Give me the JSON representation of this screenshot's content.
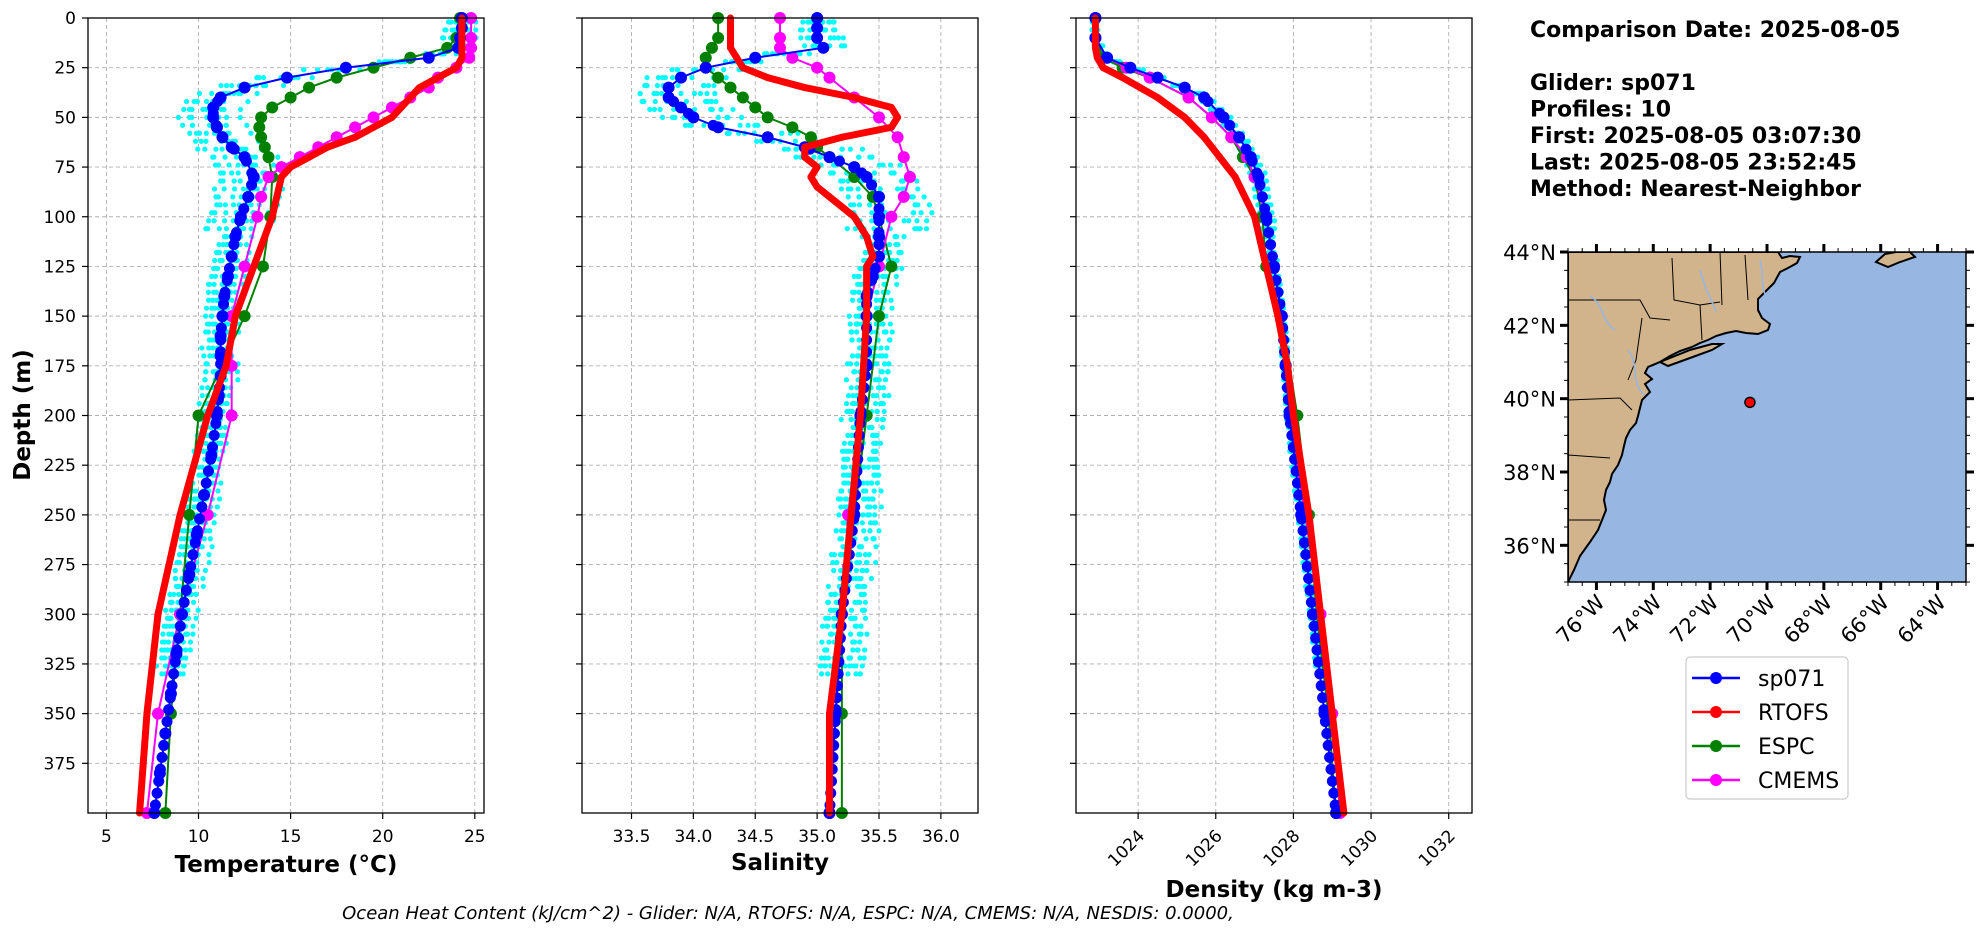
{
  "info_lines": [
    "Comparison Date: 2025-08-05",
    "",
    "Glider: sp071",
    "Profiles: 10",
    "First: 2025-08-05 03:07:30",
    "Last: 2025-08-05 23:52:45",
    "Method: Nearest-Neighbor"
  ],
  "footer": "Ocean Heat Content (kJ/cm^2) - Glider: N/A,  RTOFS: N/A,  ESPC: N/A,  CMEMS: N/A,  NESDIS: 0.0000,",
  "colors": {
    "sp071": "#0000ff",
    "RTOFS": "#ff0000",
    "ESPC": "#008000",
    "CMEMS": "#ff00ff",
    "raw_profiles": "#00ffff",
    "land": "#d2b48c",
    "ocean": "#97b6e1",
    "grid": "#b0b0b0"
  },
  "legend": {
    "placement": "below-map",
    "entries": [
      "sp071",
      "RTOFS",
      "ESPC",
      "CMEMS"
    ]
  },
  "map": {
    "lat_range": [
      35,
      44
    ],
    "lon_range": [
      -77,
      -63
    ],
    "lat_ticks": [
      "44°N",
      "42°N",
      "40°N",
      "38°N",
      "36°N"
    ],
    "lon_ticks": [
      "76°W",
      "74°W",
      "72°W",
      "70°W",
      "68°W",
      "66°W",
      "64°W"
    ],
    "glider_position": [
      -70.6,
      39.9
    ]
  },
  "chart_data": [
    {
      "type": "line",
      "xlabel": "Temperature (°C)",
      "ylabel": "Depth (m)",
      "xlim": [
        4,
        25.5
      ],
      "ylim": [
        400,
        0
      ],
      "xticks": [
        "5",
        "10",
        "15",
        "20",
        "25"
      ],
      "yticks": [
        "0",
        "25",
        "50",
        "75",
        "100",
        "125",
        "150",
        "175",
        "200",
        "225",
        "250",
        "275",
        "300",
        "325",
        "350",
        "375"
      ],
      "grid": true,
      "series": [
        {
          "name": "sp071",
          "depth": [
            0,
            5,
            10,
            15,
            20,
            25,
            30,
            35,
            40,
            45,
            50,
            55,
            60,
            65,
            70,
            80,
            90,
            100,
            110,
            120,
            130,
            140,
            150,
            160,
            170,
            180,
            190,
            200,
            220,
            240,
            260,
            280,
            300,
            320,
            340,
            360,
            380,
            400
          ],
          "values": [
            24.3,
            24.3,
            24.2,
            24.1,
            22.5,
            18.0,
            14.8,
            12.5,
            11.2,
            10.8,
            10.8,
            11.0,
            11.3,
            11.8,
            12.5,
            13.0,
            12.7,
            12.3,
            12.0,
            11.8,
            11.6,
            11.4,
            11.3,
            11.2,
            11.2,
            11.2,
            11.1,
            11.0,
            10.7,
            10.3,
            9.9,
            9.5,
            9.1,
            8.8,
            8.5,
            8.2,
            7.9,
            7.6
          ]
        },
        {
          "name": "RTOFS",
          "depth": [
            0,
            5,
            10,
            15,
            20,
            25,
            30,
            35,
            40,
            45,
            50,
            55,
            60,
            65,
            70,
            75,
            80,
            100,
            125,
            150,
            175,
            200,
            250,
            300,
            350,
            400
          ],
          "values": [
            24.3,
            24.3,
            24.3,
            24.3,
            24.3,
            24.0,
            23.0,
            22.0,
            21.5,
            21.0,
            20.5,
            19.5,
            18.5,
            17.0,
            16.0,
            15.0,
            14.5,
            14.0,
            13.0,
            12.0,
            11.5,
            10.5,
            9.0,
            7.8,
            7.2,
            6.8
          ]
        },
        {
          "name": "ESPC",
          "depth": [
            0,
            10,
            15,
            20,
            25,
            30,
            35,
            40,
            45,
            50,
            55,
            60,
            65,
            70,
            80,
            100,
            125,
            150,
            200,
            250,
            300,
            350,
            400
          ],
          "values": [
            24.2,
            24.0,
            23.5,
            21.5,
            19.5,
            17.5,
            16.0,
            15.0,
            14.0,
            13.4,
            13.3,
            13.4,
            13.6,
            13.8,
            14.0,
            13.9,
            13.5,
            12.5,
            10.0,
            9.5,
            9.0,
            8.5,
            8.2
          ]
        },
        {
          "name": "CMEMS",
          "depth": [
            0,
            10,
            15,
            20,
            25,
            30,
            35,
            40,
            45,
            50,
            55,
            60,
            65,
            70,
            75,
            80,
            90,
            100,
            125,
            150,
            175,
            200,
            250,
            300,
            350,
            400
          ],
          "values": [
            24.8,
            24.8,
            24.8,
            24.7,
            24.0,
            23.0,
            22.5,
            21.5,
            20.5,
            19.5,
            18.5,
            17.5,
            16.5,
            15.5,
            14.5,
            13.8,
            13.4,
            13.2,
            12.5,
            11.8,
            11.8,
            11.8,
            10.5,
            9.0,
            7.8,
            7.2
          ]
        }
      ]
    },
    {
      "type": "line",
      "xlabel": "Salinity",
      "xlim": [
        33.1,
        36.3
      ],
      "ylim": [
        400,
        0
      ],
      "xticks": [
        "33.5",
        "34.0",
        "34.5",
        "35.0",
        "35.5",
        "36.0"
      ],
      "grid": true,
      "series": [
        {
          "name": "sp071",
          "depth": [
            0,
            5,
            10,
            15,
            20,
            25,
            30,
            35,
            40,
            45,
            50,
            55,
            60,
            65,
            70,
            75,
            80,
            90,
            100,
            110,
            120,
            130,
            140,
            150,
            175,
            200,
            250,
            300,
            350,
            400
          ],
          "values": [
            35.0,
            35.0,
            35.0,
            35.05,
            34.5,
            34.1,
            33.9,
            33.8,
            33.8,
            33.9,
            34.0,
            34.2,
            34.6,
            34.9,
            35.1,
            35.3,
            35.4,
            35.5,
            35.5,
            35.5,
            35.5,
            35.45,
            35.4,
            35.4,
            35.4,
            35.35,
            35.3,
            35.2,
            35.15,
            35.1
          ]
        },
        {
          "name": "RTOFS",
          "depth": [
            0,
            10,
            15,
            20,
            25,
            30,
            35,
            40,
            45,
            50,
            55,
            60,
            65,
            70,
            75,
            80,
            85,
            90,
            100,
            110,
            120,
            125,
            150,
            200,
            300,
            350,
            400
          ],
          "values": [
            34.3,
            34.3,
            34.3,
            34.35,
            34.4,
            34.6,
            34.9,
            35.3,
            35.6,
            35.65,
            35.6,
            35.2,
            34.9,
            34.9,
            35.0,
            34.95,
            35.0,
            35.1,
            35.3,
            35.4,
            35.45,
            35.4,
            35.4,
            35.35,
            35.2,
            35.1,
            35.1
          ]
        },
        {
          "name": "ESPC",
          "depth": [
            0,
            10,
            15,
            20,
            25,
            30,
            35,
            40,
            45,
            50,
            55,
            60,
            65,
            70,
            80,
            90,
            100,
            125,
            150,
            200,
            250,
            300,
            350,
            400
          ],
          "values": [
            34.2,
            34.2,
            34.15,
            34.1,
            34.1,
            34.2,
            34.3,
            34.4,
            34.5,
            34.6,
            34.8,
            34.95,
            35.0,
            35.1,
            35.3,
            35.45,
            35.5,
            35.6,
            35.5,
            35.4,
            35.3,
            35.2,
            35.2,
            35.2
          ]
        },
        {
          "name": "CMEMS",
          "depth": [
            0,
            10,
            15,
            20,
            25,
            30,
            40,
            50,
            60,
            70,
            80,
            90,
            100,
            125,
            150,
            175,
            200,
            250,
            300,
            350,
            400
          ],
          "values": [
            34.7,
            34.7,
            34.7,
            34.8,
            35.0,
            35.1,
            35.3,
            35.5,
            35.65,
            35.7,
            35.75,
            35.7,
            35.6,
            35.5,
            35.4,
            35.4,
            35.35,
            35.25,
            35.2,
            35.15,
            35.1
          ]
        }
      ]
    },
    {
      "type": "line",
      "xlabel": "Density (kg m-3)",
      "xlim": [
        1022.4,
        1032.6
      ],
      "ylim": [
        400,
        0
      ],
      "xticks": [
        "1024",
        "1026",
        "1028",
        "1030",
        "1032"
      ],
      "grid": true,
      "series": [
        {
          "name": "sp071",
          "depth": [
            0,
            10,
            20,
            25,
            30,
            35,
            40,
            50,
            60,
            70,
            80,
            100,
            125,
            150,
            175,
            200,
            250,
            300,
            350,
            400
          ],
          "values": [
            1022.9,
            1022.9,
            1023.2,
            1023.8,
            1024.5,
            1025.2,
            1025.7,
            1026.2,
            1026.6,
            1026.9,
            1027.1,
            1027.3,
            1027.5,
            1027.7,
            1027.8,
            1027.9,
            1028.2,
            1028.5,
            1028.8,
            1029.1
          ]
        },
        {
          "name": "RTOFS",
          "depth": [
            0,
            10,
            15,
            20,
            25,
            30,
            40,
            50,
            60,
            70,
            80,
            100,
            125,
            150,
            175,
            200,
            250,
            300,
            350,
            400
          ],
          "values": [
            1022.9,
            1022.9,
            1022.9,
            1022.95,
            1023.1,
            1023.6,
            1024.5,
            1025.2,
            1025.7,
            1026.1,
            1026.5,
            1027.0,
            1027.3,
            1027.6,
            1027.85,
            1028.0,
            1028.4,
            1028.7,
            1029.0,
            1029.3
          ]
        },
        {
          "name": "ESPC",
          "depth": [
            0,
            10,
            20,
            25,
            30,
            40,
            50,
            60,
            70,
            80,
            100,
            125,
            150,
            200,
            250,
            300,
            350,
            400
          ],
          "values": [
            1022.9,
            1022.9,
            1023.1,
            1023.6,
            1024.3,
            1025.3,
            1025.9,
            1026.4,
            1026.7,
            1027.0,
            1027.2,
            1027.3,
            1027.7,
            1028.1,
            1028.4,
            1028.6,
            1028.9,
            1029.1
          ]
        },
        {
          "name": "CMEMS",
          "depth": [
            0,
            10,
            20,
            25,
            30,
            40,
            50,
            60,
            70,
            80,
            100,
            125,
            150,
            175,
            200,
            250,
            300,
            350,
            400
          ],
          "values": [
            1022.9,
            1022.9,
            1023.2,
            1023.7,
            1024.3,
            1025.3,
            1025.9,
            1026.4,
            1026.8,
            1027.0,
            1027.3,
            1027.5,
            1027.7,
            1027.8,
            1027.9,
            1028.3,
            1028.7,
            1029.0,
            1029.2
          ]
        }
      ]
    }
  ]
}
